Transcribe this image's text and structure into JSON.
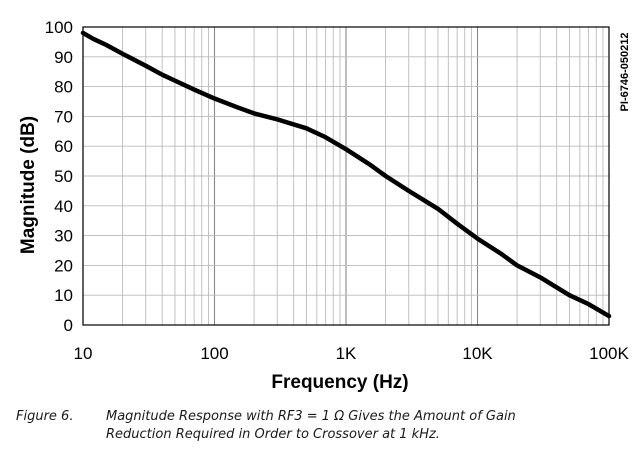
{
  "chart_data": {
    "type": "line",
    "title": "",
    "xlabel": "Frequency (Hz)",
    "ylabel": "Magnitude (dB)",
    "x_scale": "log",
    "xlim": [
      10,
      100000
    ],
    "ylim": [
      0,
      100
    ],
    "grid": true,
    "x_tick_values": [
      10,
      100,
      1000,
      10000,
      100000
    ],
    "x_tick_labels": [
      "10",
      "100",
      "1K",
      "10K",
      "100K"
    ],
    "y_tick_values": [
      0,
      10,
      20,
      30,
      40,
      50,
      60,
      70,
      80,
      90,
      100
    ],
    "y_tick_labels": [
      "0",
      "10",
      "20",
      "30",
      "40",
      "50",
      "60",
      "70",
      "80",
      "90",
      "100"
    ],
    "series": [
      {
        "name": "Magnitude",
        "x": [
          10,
          12,
          15,
          20,
          30,
          40,
          50,
          70,
          100,
          150,
          200,
          300,
          500,
          700,
          1000,
          1500,
          2000,
          3000,
          5000,
          7000,
          10000,
          15000,
          20000,
          30000,
          50000,
          70000,
          100000
        ],
        "y": [
          98,
          96,
          94,
          91,
          87,
          84,
          82,
          79,
          76,
          73,
          71,
          69,
          66,
          63,
          59,
          54,
          50,
          45,
          39,
          34,
          29,
          24,
          20,
          16,
          10,
          7,
          3
        ]
      }
    ],
    "side_label": "PI-6746-050212"
  },
  "caption": {
    "figure_label": "Figure 6.",
    "line1": "Magnitude Response with RF3 = 1 Ω Gives the Amount of Gain",
    "line2": "Reduction Required in Order to Crossover at 1 kHz."
  }
}
